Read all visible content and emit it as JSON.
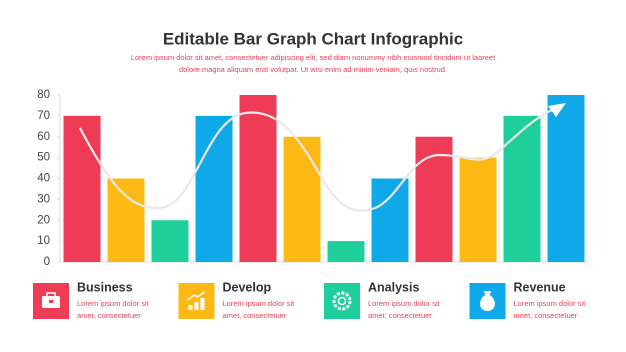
{
  "chart_data": {
    "type": "bar",
    "title": "Editable Bar Graph Chart Infographic",
    "subtitle": [
      "Lorem ipsum dolor sit amet, consectetuer adipiscing elit, sed diam nonummy nibh euismod tincidunt ut laoreet",
      "dolore magna aliquam erat volutpat. Ut wisi enim ad minim veniam, quis nostrud."
    ],
    "values": [
      70,
      40,
      20,
      70,
      80,
      60,
      10,
      40,
      60,
      50,
      70,
      80
    ],
    "colors": [
      "#ef3c56",
      "#fdb913",
      "#1fcf9b",
      "#0fa8e8",
      "#ef3c56",
      "#fdb913",
      "#1fcf9b",
      "#0fa8e8",
      "#ef3c56",
      "#fdb913",
      "#1fcf9b",
      "#0fa8e8"
    ],
    "ylim": [
      0,
      80
    ],
    "yticks": [
      0,
      10,
      20,
      30,
      40,
      50,
      60,
      70,
      80
    ],
    "legend": [
      {
        "name": "Business",
        "color": "#ef3c56",
        "text": [
          "Lorem ipsum dolor sit",
          "amet, consectetuer"
        ]
      },
      {
        "name": "Develop",
        "color": "#fdb913",
        "text": [
          "Lorem ipsum dolor sit",
          "amet, consectetuer"
        ]
      },
      {
        "name": "Analysis",
        "color": "#1fcf9b",
        "text": [
          "Lorem ipsum dolor sit",
          "amet, consectetuer"
        ]
      },
      {
        "name": "Revenue",
        "color": "#0fa8e8",
        "text": [
          "Lorem ipsum dolor sit",
          "amet, consectetuer"
        ]
      }
    ]
  }
}
